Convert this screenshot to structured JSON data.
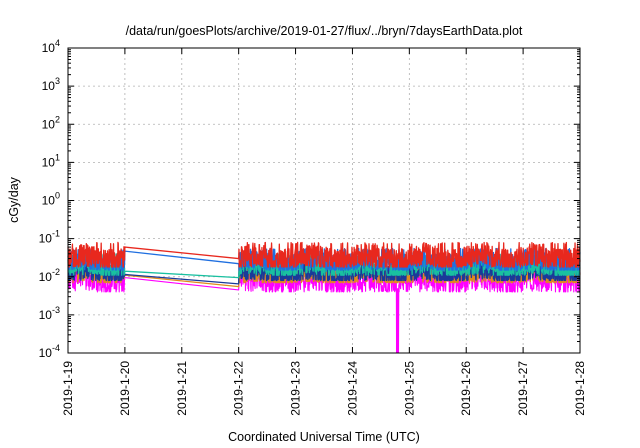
{
  "chart_data": {
    "type": "line",
    "title": "/data/run/goesPlots/archive/2019-01-27/flux/../bryn/7daysEarthData.plot",
    "xlabel": "Coordinated Universal Time (UTC)",
    "ylabel": "cGy/day",
    "xlim": [
      "2019-01-19",
      "2019-01-28"
    ],
    "ylim": [
      0.0001,
      10000
    ],
    "y_scale": "log",
    "grid": true,
    "x_ticks": [
      "2019-1-19",
      "2019-1-20",
      "2019-1-21",
      "2019-1-22",
      "2019-1-23",
      "2019-1-24",
      "2019-1-25",
      "2019-1-26",
      "2019-1-27",
      "2019-1-28"
    ],
    "y_ticks": [
      {
        "value": 0.0001,
        "base": "10",
        "exp": "-4"
      },
      {
        "value": 0.001,
        "base": "10",
        "exp": "-3"
      },
      {
        "value": 0.01,
        "base": "10",
        "exp": "-2"
      },
      {
        "value": 0.1,
        "base": "10",
        "exp": "-1"
      },
      {
        "value": 1,
        "base": "10",
        "exp": "0"
      },
      {
        "value": 10,
        "base": "10",
        "exp": "1"
      },
      {
        "value": 100,
        "base": "10",
        "exp": "2"
      },
      {
        "value": 1000,
        "base": "10",
        "exp": "3"
      },
      {
        "value": 10000,
        "base": "10",
        "exp": "4"
      }
    ],
    "data_gap": [
      "2019-01-20",
      "2019-01-22"
    ],
    "dip": {
      "date": "2019-01-24 19:00",
      "value": 0.0001
    },
    "series": [
      {
        "color": "#ff00ff",
        "values": {
          "before_gap": 0.0095,
          "after_gap": 0.0045,
          "typical": 0.008,
          "min": 0.004,
          "max": 0.02
        }
      },
      {
        "color": "#e08a1e",
        "values": {
          "before_gap": 0.011,
          "after_gap": 0.0055,
          "typical": 0.011,
          "min": 0.007,
          "max": 0.025
        }
      },
      {
        "color": "#1a3a99",
        "values": {
          "before_gap": 0.0115,
          "after_gap": 0.0065,
          "typical": 0.013,
          "min": 0.008,
          "max": 0.03
        }
      },
      {
        "color": "#19c0a0",
        "values": {
          "before_gap": 0.014,
          "after_gap": 0.0095,
          "typical": 0.018,
          "min": 0.011,
          "max": 0.04
        }
      },
      {
        "color": "#1f6fe0",
        "values": {
          "before_gap": 0.047,
          "after_gap": 0.022,
          "typical": 0.025,
          "min": 0.015,
          "max": 0.055
        }
      },
      {
        "color": "#e8281e",
        "values": {
          "before_gap": 0.06,
          "after_gap": 0.03,
          "typical": 0.032,
          "min": 0.018,
          "max": 0.08
        }
      }
    ]
  }
}
